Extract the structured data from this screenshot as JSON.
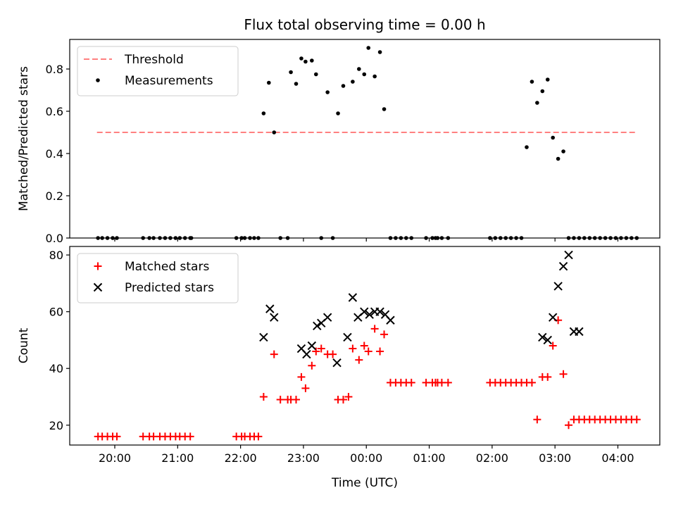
{
  "chart_data": [
    {
      "type": "scatter",
      "title": "Flux total observing time = 0.00 h",
      "xlabel": "",
      "ylabel": "Matched/Predicted stars",
      "ylim": [
        0,
        0.94
      ],
      "yticks": [
        0.0,
        0.2,
        0.4,
        0.6,
        0.8
      ],
      "ytick_labels": [
        "0.0",
        "0.2",
        "0.4",
        "0.6",
        "0.8"
      ],
      "xlim": [
        "19:17",
        "04:40"
      ],
      "xticks": [
        "20:00",
        "21:00",
        "22:00",
        "23:00",
        "00:00",
        "01:00",
        "02:00",
        "03:00",
        "04:00"
      ],
      "xtick_labels": [],
      "grid": false,
      "legend_position": "top-left",
      "threshold": {
        "name": "Threshold",
        "value": 0.5,
        "x_start": "19:43",
        "x_end": "04:17",
        "color": "#ff8080"
      },
      "series": [
        {
          "name": "Measurements",
          "color": "#000000",
          "marker": "dot",
          "x": [
            "19:44",
            "19:48",
            "19:53",
            "19:58",
            "20:02",
            "20:27",
            "20:33",
            "20:37",
            "20:43",
            "20:48",
            "20:53",
            "20:58",
            "21:02",
            "21:07",
            "21:12",
            "21:13",
            "21:56",
            "22:01",
            "22:04",
            "22:09",
            "22:13",
            "22:17",
            "22:22",
            "22:27",
            "22:32",
            "22:38",
            "22:45",
            "22:48",
            "22:53",
            "22:58",
            "23:02",
            "23:08",
            "23:12",
            "23:17",
            "23:23",
            "23:28",
            "23:33",
            "23:38",
            "23:47",
            "23:53",
            "23:58",
            "00:02",
            "00:08",
            "00:13",
            "00:17",
            "00:23",
            "00:28",
            "00:33",
            "00:38",
            "00:43",
            "00:57",
            "01:03",
            "01:06",
            "01:08",
            "01:12",
            "01:18",
            "01:58",
            "02:03",
            "02:08",
            "02:13",
            "02:18",
            "02:23",
            "02:28",
            "02:33",
            "02:38",
            "02:43",
            "02:48",
            "02:53",
            "02:58",
            "03:03",
            "03:08",
            "03:13",
            "03:18",
            "03:23",
            "03:28",
            "03:33",
            "03:38",
            "03:43",
            "03:48",
            "03:53",
            "03:58",
            "04:03",
            "04:08",
            "04:13",
            "04:18"
          ],
          "y": [
            0,
            0,
            0,
            0,
            0,
            0,
            0,
            0,
            0,
            0,
            0,
            0,
            0,
            0,
            0,
            0,
            0,
            0,
            0,
            0,
            0,
            0,
            0.59,
            0.735,
            0.5,
            0,
            0,
            0.785,
            0.73,
            0.85,
            0.835,
            0.84,
            0.775,
            0,
            0.69,
            0,
            0.59,
            0.72,
            0.74,
            0.8,
            0.775,
            0.9,
            0.765,
            0.88,
            0.61,
            0,
            0,
            0,
            0,
            0,
            0,
            0,
            0,
            0,
            0,
            0,
            0,
            0,
            0,
            0,
            0,
            0,
            0,
            0.43,
            0.74,
            0.64,
            0.695,
            0.75,
            0.475,
            0.375,
            0.41,
            0,
            0,
            0,
            0,
            0,
            0,
            0,
            0,
            0,
            0,
            0,
            0,
            0,
            0
          ],
          "x_note": ""
        }
      ]
    },
    {
      "type": "scatter",
      "title": "",
      "xlabel": "Time (UTC)",
      "ylabel": "Count",
      "ylim": [
        13,
        83
      ],
      "yticks": [
        20,
        40,
        60,
        80
      ],
      "ytick_labels": [
        "20",
        "40",
        "60",
        "80"
      ],
      "xlim": [
        "19:17",
        "04:40"
      ],
      "xticks": [
        "20:00",
        "21:00",
        "22:00",
        "23:00",
        "00:00",
        "01:00",
        "02:00",
        "03:00",
        "04:00"
      ],
      "xtick_labels": [
        "20:00",
        "21:00",
        "22:00",
        "23:00",
        "00:00",
        "01:00",
        "02:00",
        "03:00",
        "04:00"
      ],
      "grid": false,
      "legend_position": "top-left",
      "series": [
        {
          "name": "Matched stars",
          "color": "#ff0000",
          "marker": "plus",
          "x": [
            "19:44",
            "19:48",
            "19:53",
            "19:58",
            "20:02",
            "20:27",
            "20:33",
            "20:37",
            "20:43",
            "20:48",
            "20:53",
            "20:58",
            "21:02",
            "21:07",
            "21:12",
            "21:56",
            "22:01",
            "22:04",
            "22:09",
            "22:13",
            "22:17",
            "22:22",
            "22:32",
            "22:38",
            "22:45",
            "22:48",
            "22:53",
            "22:58",
            "23:02",
            "23:08",
            "23:12",
            "23:17",
            "23:23",
            "23:28",
            "23:33",
            "23:38",
            "23:43",
            "23:47",
            "23:53",
            "23:58",
            "00:02",
            "00:08",
            "00:13",
            "00:17",
            "00:23",
            "00:28",
            "00:33",
            "00:38",
            "00:43",
            "00:57",
            "01:03",
            "01:06",
            "01:08",
            "01:12",
            "01:18",
            "01:58",
            "02:03",
            "02:08",
            "02:13",
            "02:18",
            "02:23",
            "02:28",
            "02:33",
            "02:38",
            "02:43",
            "02:48",
            "02:53",
            "02:58",
            "03:03",
            "03:08",
            "03:13",
            "03:18",
            "03:23",
            "03:28",
            "03:33",
            "03:38",
            "03:43",
            "03:48",
            "03:53",
            "03:58",
            "04:03",
            "04:08",
            "04:13",
            "04:18"
          ],
          "y": [
            16,
            16,
            16,
            16,
            16,
            16,
            16,
            16,
            16,
            16,
            16,
            16,
            16,
            16,
            16,
            16,
            16,
            16,
            16,
            16,
            16,
            30,
            45,
            29,
            29,
            29,
            29,
            37,
            33,
            41,
            46,
            47,
            45,
            45,
            29,
            29,
            30,
            47,
            43,
            48,
            46,
            54,
            46,
            52,
            35,
            35,
            35,
            35,
            35,
            35,
            35,
            35,
            35,
            35,
            35,
            35,
            35,
            35,
            35,
            35,
            35,
            35,
            35,
            35,
            22,
            37,
            37,
            48,
            57,
            38,
            20,
            22,
            22,
            22,
            22,
            22,
            22,
            22,
            22,
            22,
            22,
            22,
            22,
            22
          ],
          "x_note": ""
        },
        {
          "name": "Predicted stars",
          "color": "#000000",
          "marker": "cross",
          "x": [
            "22:22",
            "22:28",
            "22:32",
            "22:58",
            "23:03",
            "23:08",
            "23:13",
            "23:17",
            "23:23",
            "23:32",
            "23:42",
            "23:47",
            "23:52",
            "23:58",
            "00:03",
            "00:08",
            "00:13",
            "00:18",
            "00:23",
            "00:28",
            "02:48",
            "02:53",
            "02:58",
            "03:03",
            "03:08",
            "03:13",
            "03:18",
            "03:23"
          ],
          "y": [
            51,
            61,
            58,
            47,
            45,
            48,
            55,
            56,
            58,
            42,
            51,
            65,
            58,
            60,
            59,
            60,
            60,
            59,
            57,
            null,
            51,
            50,
            58,
            69,
            76,
            80,
            53,
            53
          ]
        }
      ]
    }
  ]
}
